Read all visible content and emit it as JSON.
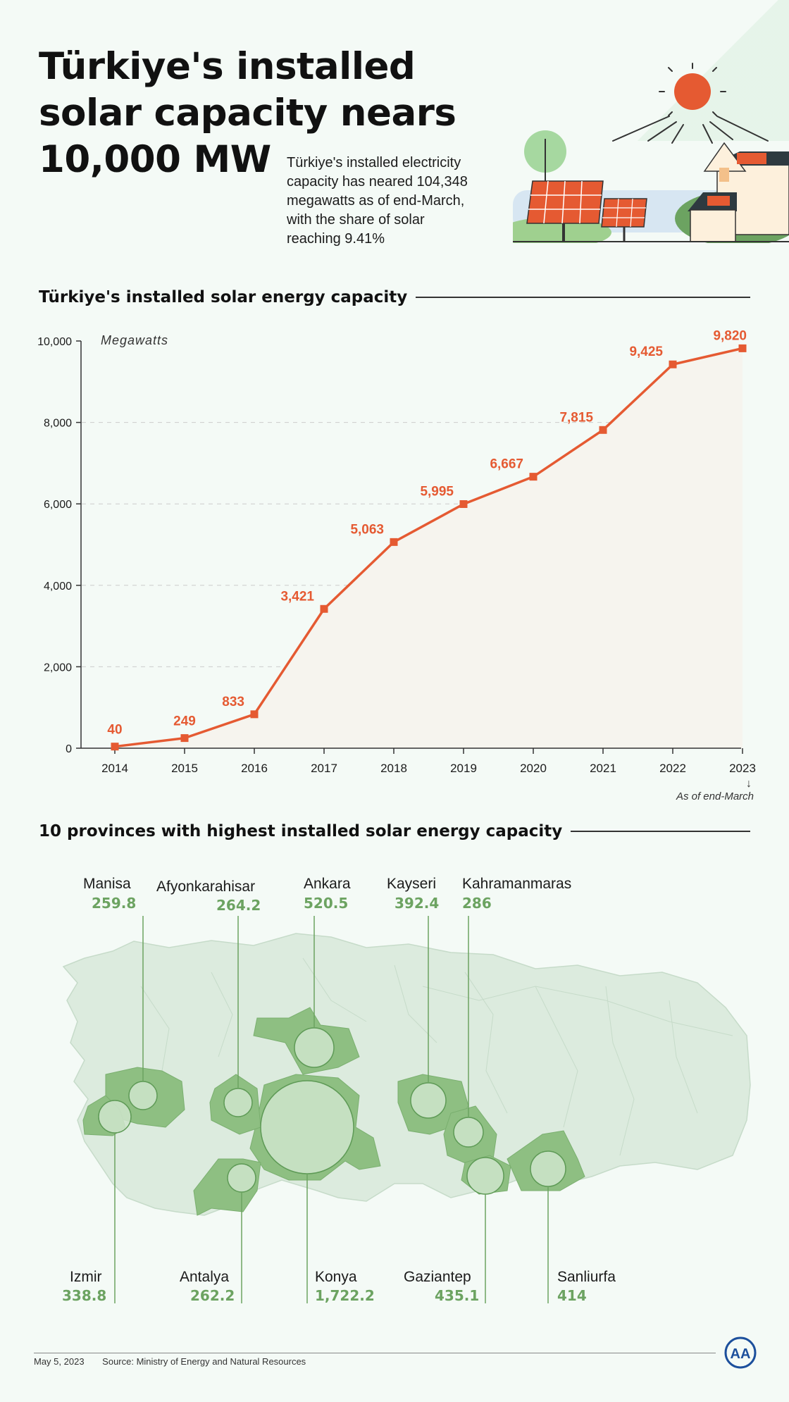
{
  "header": {
    "title_lines": [
      "Türkiye's installed",
      "solar capacity nears",
      "10,000 MW"
    ],
    "intro_lines": [
      "Türkiye's installed electricity",
      "capacity has neared 104,348",
      "megawatts as of end-March,",
      "with the share of solar",
      "reaching 9.41%"
    ]
  },
  "chart_section": {
    "heading": "Türkiye's installed solar energy capacity"
  },
  "chart_data": {
    "type": "line",
    "title": "Türkiye's installed solar energy capacity",
    "ylabel": "Megawatts",
    "xlabel": "",
    "x": [
      "2014",
      "2015",
      "2016",
      "2017",
      "2018",
      "2019",
      "2020",
      "2021",
      "2022",
      "2023"
    ],
    "values": [
      40,
      249,
      833,
      3421,
      5063,
      5995,
      6667,
      7815,
      9425,
      9820
    ],
    "value_labels": [
      "40",
      "249",
      "833",
      "3,421",
      "5,063",
      "5,995",
      "6,667",
      "7,815",
      "9,425",
      "9,820"
    ],
    "y_ticks": [
      "0",
      "2,000",
      "4,000",
      "6,000",
      "8,000",
      "10,000"
    ],
    "ylim": [
      0,
      10000
    ],
    "grid": "horizontal dashed",
    "note": "As of end-March",
    "colors": {
      "line": "#e55a32",
      "area": "#f6f4ee",
      "grid": "#cccccc"
    }
  },
  "provinces_section": {
    "heading": "10 provinces with highest installed solar energy capacity",
    "top_labels": [
      {
        "name": "Manisa",
        "value": "259.8"
      },
      {
        "name": "Afyonkarahisar",
        "value": "264.2"
      },
      {
        "name": "Ankara",
        "value": "520.5"
      },
      {
        "name": "Kayseri",
        "value": "392.4"
      },
      {
        "name": "Kahramanmaras",
        "value": "286"
      }
    ],
    "bottom_labels": [
      {
        "name": "Izmir",
        "value": "338.8"
      },
      {
        "name": "Antalya",
        "value": "262.2"
      },
      {
        "name": "Konya",
        "value": "1,722.2"
      },
      {
        "name": "Gaziantep",
        "value": "435.1"
      },
      {
        "name": "Sanliurfa",
        "value": "414"
      }
    ],
    "colors": {
      "value": "#6ca361",
      "province_fill": "#8ebf82",
      "map_fill": "#dcebde"
    }
  },
  "footer": {
    "date": "May 5, 2023",
    "source": "Source: Ministry of Energy and Natural Resources",
    "logo_text": "AA"
  }
}
